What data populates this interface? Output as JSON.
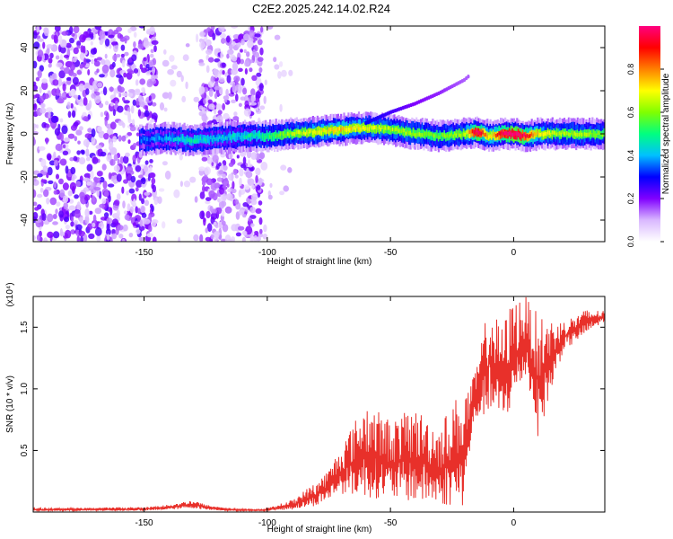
{
  "title": "C2E2.2025.242.14.02.R24",
  "chart_data": [
    {
      "type": "heatmap",
      "xlabel": "Height of straight line (km)",
      "ylabel": "Frequency (Hz)",
      "xlim": [
        -195,
        37
      ],
      "ylim": [
        -50,
        50
      ],
      "xticks": [
        -150,
        -100,
        -50,
        0
      ],
      "yticks": [
        -40,
        -20,
        0,
        20,
        40
      ],
      "colorbar": {
        "label": "Normalized spectral amplitude",
        "range": [
          0,
          1
        ],
        "ticks": [
          0.0,
          0.2,
          0.4,
          0.6,
          0.8
        ],
        "tick_labels": [
          "0.0",
          "0.2",
          "0.4",
          "0.6",
          "0.8"
        ],
        "colormap": [
          "#ffffff",
          "#d9b8ff",
          "#8000ff",
          "#0000ff",
          "#00c0ff",
          "#00ff80",
          "#80ff00",
          "#ffff00",
          "#ff8000",
          "#ff0000",
          "#ff0080"
        ]
      },
      "ridge": {
        "x": [
          -152,
          -140,
          -130,
          -120,
          -110,
          -100,
          -90,
          -80,
          -70,
          -60,
          -50,
          -40,
          -30,
          -20,
          -15,
          -10,
          -5,
          0,
          5,
          10,
          20,
          30,
          37
        ],
        "y": [
          -3,
          -2,
          -3,
          -2,
          -1,
          -1,
          0,
          1,
          2,
          3,
          2,
          0,
          -1,
          0,
          1,
          -1,
          0,
          0,
          -1,
          0,
          0,
          0,
          0
        ],
        "amplitude": [
          0.3,
          0.35,
          0.4,
          0.35,
          0.4,
          0.45,
          0.55,
          0.6,
          0.65,
          0.6,
          0.55,
          0.55,
          0.5,
          0.55,
          0.9,
          0.6,
          0.85,
          0.95,
          0.8,
          0.6,
          0.55,
          0.55,
          0.5
        ]
      },
      "branch": {
        "x": [
          -60,
          -50,
          -40,
          -30,
          -20,
          -18
        ],
        "y": [
          5,
          10,
          14,
          19,
          25,
          27
        ],
        "amplitude": [
          0.3,
          0.25,
          0.2,
          0.18,
          0.15,
          0.15
        ]
      }
    },
    {
      "type": "line",
      "xlabel": "Height of straight line (km)",
      "ylabel": "SNR (10 * v/v)",
      "scale_label": "(x10⁴)",
      "xlim": [
        -195,
        37
      ],
      "ylim": [
        0,
        1.75
      ],
      "xticks": [
        -150,
        -100,
        -50,
        0
      ],
      "yticks": [
        0.5,
        1.0,
        1.5
      ],
      "ytick_labels": [
        "0.5",
        "1.0",
        "1.5"
      ],
      "color": "#e8302a",
      "envelope": {
        "x": [
          -195,
          -150,
          -140,
          -130,
          -125,
          -115,
          -105,
          -100,
          -90,
          -80,
          -75,
          -70,
          -60,
          -50,
          -40,
          -30,
          -25,
          -20,
          -17,
          -15,
          -10,
          -5,
          0,
          5,
          10,
          20,
          30,
          37
        ],
        "low": [
          0.01,
          0.01,
          0.02,
          0.03,
          0.02,
          0.01,
          0.01,
          0.01,
          0.02,
          0.05,
          0.1,
          0.15,
          0.12,
          0.1,
          0.08,
          0.05,
          0.05,
          0.04,
          0.6,
          0.75,
          0.8,
          0.7,
          0.85,
          1.1,
          0.6,
          1.3,
          1.45,
          1.55
        ],
        "high": [
          0.03,
          0.04,
          0.06,
          0.1,
          0.06,
          0.03,
          0.02,
          0.03,
          0.1,
          0.25,
          0.35,
          0.55,
          0.9,
          0.75,
          0.85,
          0.7,
          0.9,
          1.0,
          1.05,
          1.2,
          1.7,
          1.5,
          1.75,
          1.75,
          1.6,
          1.55,
          1.65,
          1.63
        ]
      }
    }
  ]
}
